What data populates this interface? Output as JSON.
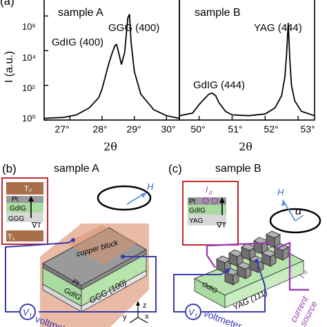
{
  "panel_a": {
    "label": "(a)",
    "ylabel": "I (a.u.)",
    "xlabel_left": "2θ",
    "xlabel_right": "2θ",
    "left": {
      "sample": "sample A",
      "peaks": [
        "GdIG (400)",
        "GGG (400)"
      ],
      "xticks": [
        "27°",
        "28°",
        "29°",
        "30°"
      ],
      "yticks": [
        "10⁶",
        "10⁴",
        "10²",
        "10⁰"
      ]
    },
    "right": {
      "sample": "sample B",
      "peaks": [
        "GdIG (444)",
        "YAG (444)"
      ],
      "xticks": [
        "50°",
        "51°",
        "52°",
        "53°"
      ]
    }
  },
  "panel_b": {
    "label": "(b)",
    "title": "sample A",
    "inset_layers": [
      "T₂",
      "Pt",
      "GdIG",
      "GGG",
      "T₁"
    ],
    "inset_gradient": "∇T",
    "field": "H",
    "device_labels": [
      "copper block",
      "Pt",
      "GdIG",
      "GGG (100)"
    ],
    "voltmeter": "voltmeter",
    "meter_symbol": "V",
    "meter_subscript": "t",
    "axes": [
      "z",
      "y",
      "x"
    ]
  },
  "panel_c": {
    "label": "(c)",
    "title": "sample B",
    "inset_current": "I",
    "inset_current_sub": "d",
    "inset_layers": [
      "Pt",
      "GdIG",
      "YAG"
    ],
    "inset_gradient": "∇T",
    "field": "H",
    "angle": "α",
    "device_labels": [
      "GdIG",
      "YAG (111)"
    ],
    "current_label": "I",
    "current_sub": "d",
    "current_source": [
      "current",
      "source"
    ],
    "voltmeter": "voltmeter",
    "meter_symbol": "V",
    "meter_subscript": "t"
  },
  "colors": {
    "curve": "#000000",
    "voltmeter_wire": "#3a3ab0",
    "current_wire": "#9b3fb5",
    "inset_border": "#c0282d",
    "copper": "#d9926e",
    "gdig": "#a9dba0",
    "pt": "#8c8c8c",
    "field_arrow": "#5b8fd9"
  },
  "chart_data": [
    {
      "type": "line",
      "title": "sample A",
      "xlabel": "2θ",
      "ylabel": "I (a.u.)",
      "xlim": [
        26.2,
        30.4
      ],
      "ylim_log10": [
        0,
        7
      ],
      "y_scale": "log",
      "series": [
        {
          "x": [
            26.2,
            26.8,
            27.2,
            27.6,
            27.9,
            28.0,
            28.1,
            28.2,
            28.3,
            28.4,
            28.45,
            28.5,
            28.6,
            28.7,
            28.75,
            28.8,
            28.85,
            28.9,
            29.0,
            29.2,
            29.6,
            30.0,
            30.4
          ],
          "y_log10": [
            0.1,
            0.15,
            0.3,
            0.7,
            1.3,
            1.8,
            2.5,
            3.2,
            3.8,
            4.3,
            4.35,
            4.0,
            3.2,
            3.9,
            4.9,
            5.9,
            6.1,
            4.5,
            2.8,
            1.5,
            0.6,
            0.25,
            0.1
          ]
        }
      ]
    },
    {
      "type": "line",
      "title": "sample B",
      "xlabel": "2θ",
      "xlim": [
        49.4,
        53.5
      ],
      "ylim_log10": [
        0,
        7
      ],
      "y_scale": "log",
      "series": [
        {
          "x": [
            49.4,
            49.8,
            50.0,
            50.2,
            50.3,
            50.4,
            50.5,
            50.6,
            50.8,
            51.0,
            51.5,
            52.0,
            52.3,
            52.5,
            52.6,
            52.65,
            52.7,
            52.75,
            52.8,
            52.9,
            53.1,
            53.5
          ],
          "y_log10": [
            0.25,
            0.4,
            0.9,
            1.3,
            1.5,
            1.55,
            1.4,
            1.0,
            0.5,
            0.3,
            0.25,
            0.35,
            0.7,
            1.4,
            2.5,
            3.8,
            5.6,
            3.5,
            2.0,
            1.1,
            0.5,
            0.25
          ]
        }
      ]
    }
  ]
}
